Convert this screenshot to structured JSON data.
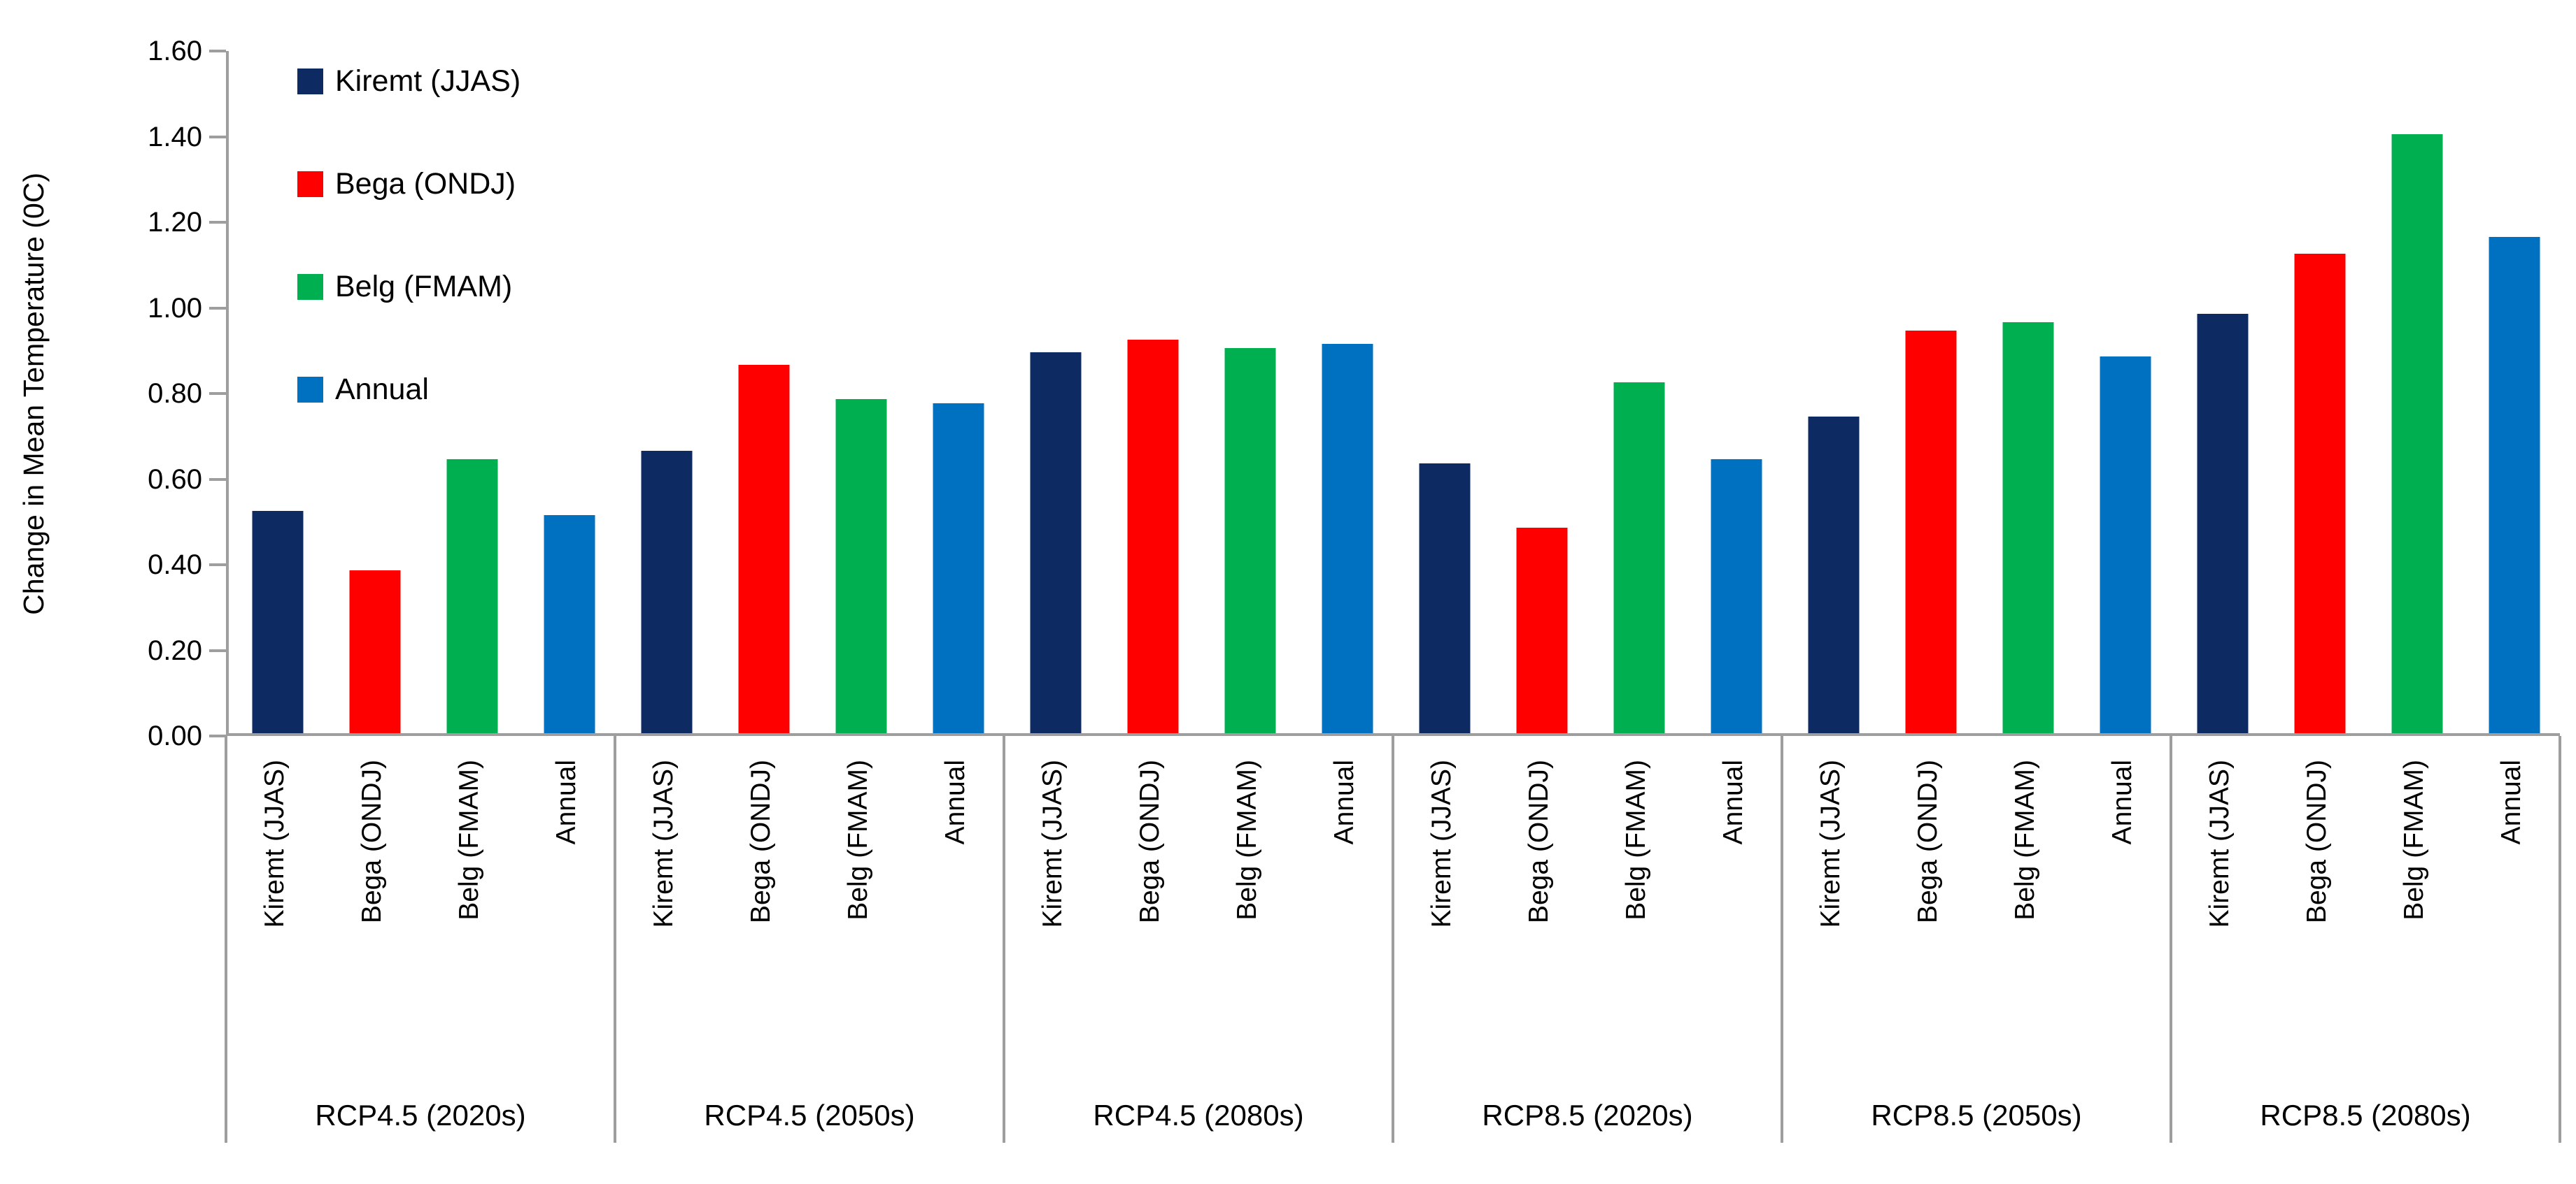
{
  "chart_data": {
    "type": "bar",
    "title": "",
    "xlabel": "",
    "ylabel": "Change in Mean Temperature (0C)",
    "ylim": [
      0,
      1.6
    ],
    "ytick_step": 0.2,
    "ytick_labels": [
      "0.00",
      "0.20",
      "0.40",
      "0.60",
      "0.80",
      "1.00",
      "1.20",
      "1.40",
      "1.60"
    ],
    "grid": false,
    "legend_position": "upper-left-inside",
    "categories": [
      "RCP4.5 (2020s)",
      "RCP4.5 (2050s)",
      "RCP4.5 (2080s)",
      "RCP8.5 (2020s)",
      "RCP8.5 (2050s)",
      "RCP8.5 (2080s)"
    ],
    "series": [
      {
        "name": "Kiremt (JJAS)",
        "color": "#0d2a63",
        "values": [
          0.52,
          0.66,
          0.89,
          0.63,
          0.74,
          0.98
        ]
      },
      {
        "name": "Bega (ONDJ)",
        "color": "#ff0000",
        "values": [
          0.38,
          0.86,
          0.92,
          0.48,
          0.94,
          1.12
        ]
      },
      {
        "name": "Belg (FMAM)",
        "color": "#00b050",
        "values": [
          0.64,
          0.78,
          0.9,
          0.82,
          0.96,
          1.4
        ]
      },
      {
        "name": "Annual",
        "color": "#0070c0",
        "values": [
          0.51,
          0.77,
          0.91,
          0.64,
          0.88,
          1.16
        ]
      }
    ],
    "bar_sublabels_equal_series_names": true,
    "axis_color": "#9e9e9e",
    "text_color": "#000000"
  }
}
